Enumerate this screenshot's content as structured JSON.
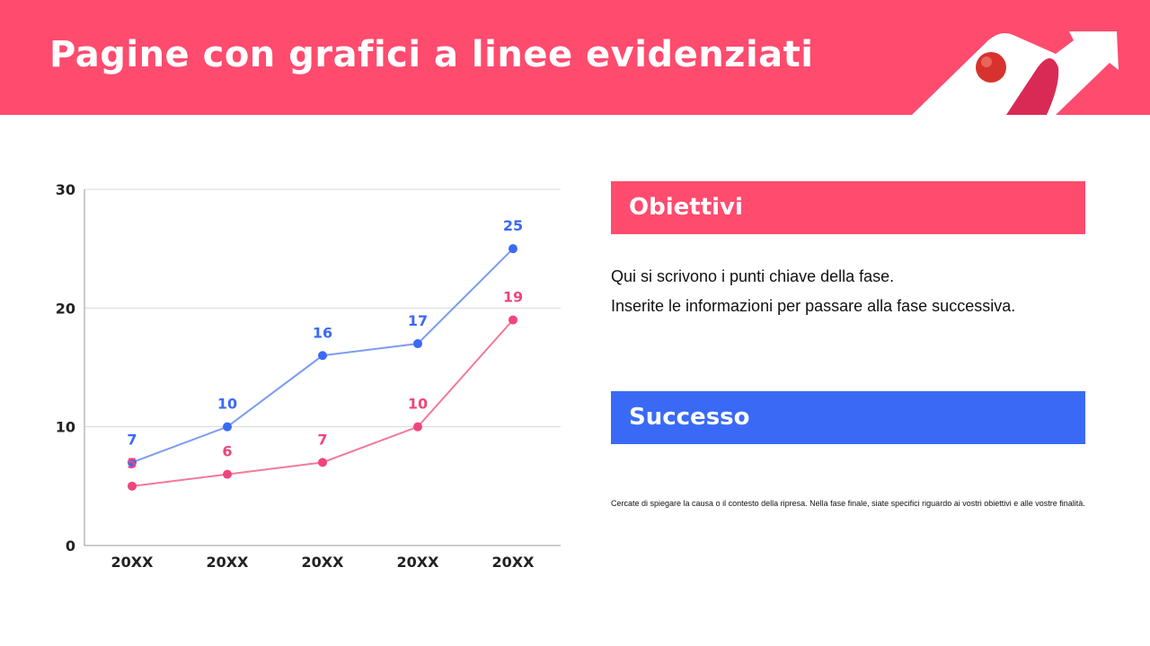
{
  "header": {
    "title": "Pagine con grafici a linee evidenziati"
  },
  "colors": {
    "accent_pink": "#ff4b6e",
    "accent_blue": "#3a6af5"
  },
  "chart_data": {
    "type": "line",
    "categories": [
      "20XX",
      "20XX",
      "20XX",
      "20XX",
      "20XX"
    ],
    "series": [
      {
        "color": "#3a6af5",
        "values": [
          7,
          10,
          16,
          17,
          25
        ]
      },
      {
        "color": "#f0457a",
        "values": [
          5,
          6,
          7,
          10,
          19
        ]
      }
    ],
    "ylim": [
      0,
      30
    ],
    "yticks": [
      0,
      10,
      20,
      30
    ],
    "grid": true,
    "data_labels": true
  },
  "panels": {
    "goals": {
      "title": "Obiettivi",
      "lines": [
        "Qui si scrivono i punti chiave della fase.",
        "Inserite le informazioni per passare alla fase successiva."
      ]
    },
    "success": {
      "title": "Successo",
      "text": "Cercate di spiegare la causa o il contesto della ripresa. Nella fase finale, siate specifici riguardo ai vostri obiettivi e alle vostre finalità."
    }
  }
}
